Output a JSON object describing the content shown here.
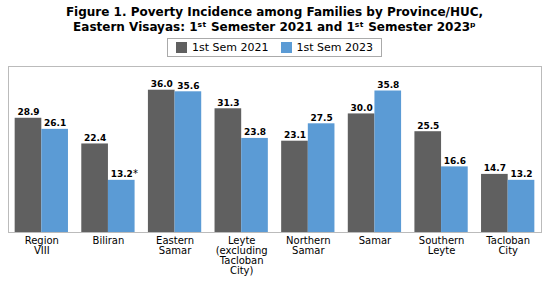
{
  "chart_data": {
    "type": "bar",
    "title": "Figure 1. Poverty Incidence among Families by Province/HUC,\nEastern Visayas: 1ˢᵗ Semester 2021 and 1ˢᵗ Semester 2023ᵖ",
    "categories": [
      "Region\nVIII",
      "Biliran",
      "Eastern\nSamar",
      "Leyte\n(excluding\nTacloban\nCity)",
      "Northern\nSamar",
      "Samar",
      "Southern\nLeyte",
      "Tacloban\nCity"
    ],
    "series": [
      {
        "name": "1st Sem 2021",
        "color": "#606060",
        "values": [
          28.9,
          22.4,
          36.0,
          31.3,
          23.1,
          30.0,
          25.5,
          14.7
        ],
        "value_labels": [
          "28.9",
          "22.4",
          "36.0",
          "31.3",
          "23.1",
          "30.0",
          "25.5",
          "14.7"
        ]
      },
      {
        "name": "1st Sem 2023",
        "color": "#5B9BD5",
        "values": [
          26.1,
          13.2,
          35.6,
          23.8,
          27.5,
          35.8,
          16.6,
          13.2
        ],
        "value_labels": [
          "26.1",
          "13.2",
          "35.6",
          "23.8",
          "27.5",
          "35.8",
          "16.6",
          "13.2"
        ]
      }
    ],
    "ylim": [
      0,
      42
    ],
    "yticks": [],
    "grid": false,
    "legend": "top",
    "data_labels": true,
    "tick_labels": "x",
    "annotations": [
      {
        "text": "*",
        "category": "Biliran",
        "series": "1st Sem 2023"
      }
    ]
  }
}
